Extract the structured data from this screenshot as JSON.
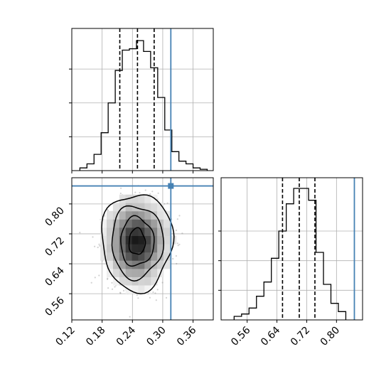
{
  "chart_data": {
    "type": "corner",
    "grid": true,
    "colors": {
      "truth": "#4682b4",
      "hist": "#000000",
      "quantile": "#000000",
      "scatter": "#7f7f7f"
    },
    "parameters": [
      {
        "key": "p1",
        "range": [
          0.12,
          0.4
        ],
        "ticks": [
          "0.12",
          "0.18",
          "0.24",
          "0.30",
          "0.36"
        ],
        "truth": 0.316,
        "quantiles": [
          0.215,
          0.25,
          0.283
        ]
      },
      {
        "key": "p2",
        "range": [
          0.49,
          0.87
        ],
        "ticks": [
          "0.56",
          "0.64",
          "0.72",
          "0.80"
        ],
        "truth": 0.848,
        "quantiles": [
          0.655,
          0.7,
          0.742
        ]
      }
    ],
    "hist_p1": {
      "edges": [
        0.136,
        0.15,
        0.164,
        0.178,
        0.192,
        0.206,
        0.22,
        0.234,
        0.248,
        0.262,
        0.276,
        0.29,
        0.304,
        0.318,
        0.332,
        0.346,
        0.36,
        0.374,
        0.388
      ],
      "counts": [
        2,
        5,
        12,
        28,
        50,
        74,
        89,
        90,
        96,
        88,
        76,
        54,
        30,
        14,
        7,
        5,
        2,
        1
      ]
    },
    "hist_p2": {
      "edges": [
        0.525,
        0.545,
        0.565,
        0.585,
        0.605,
        0.625,
        0.645,
        0.665,
        0.685,
        0.705,
        0.725,
        0.745,
        0.765,
        0.785,
        0.805,
        0.825
      ],
      "counts": [
        3,
        5,
        10,
        20,
        32,
        52,
        75,
        98,
        111,
        111,
        101,
        57,
        30,
        14,
        7
      ]
    },
    "hist_p1_ymax": 105,
    "hist_p2_ymax": 120,
    "hist_yticks": [
      25,
      50,
      75
    ],
    "hist2d": {
      "center": [
        0.249,
        0.699
      ],
      "levels": [
        {
          "rx": 0.016,
          "ry": 0.035,
          "shade": 0.9
        },
        {
          "rx": 0.033,
          "ry": 0.065,
          "shade": 0.62
        },
        {
          "rx": 0.051,
          "ry": 0.097,
          "shade": 0.35
        },
        {
          "rx": 0.07,
          "ry": 0.13,
          "shade": 0.15
        }
      ]
    }
  }
}
